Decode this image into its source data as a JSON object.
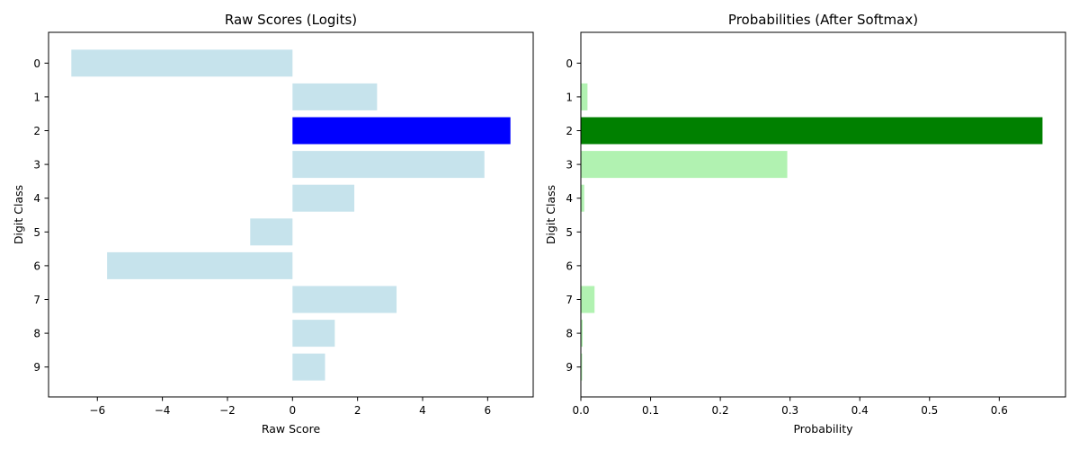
{
  "chart_data": [
    {
      "type": "bar",
      "orientation": "horizontal",
      "title": "Raw Scores (Logits)",
      "xlabel": "Raw Score",
      "ylabel": "Digit Class",
      "categories": [
        "0",
        "1",
        "2",
        "3",
        "4",
        "5",
        "6",
        "7",
        "8",
        "9"
      ],
      "values": [
        -6.8,
        2.6,
        6.7,
        5.9,
        1.9,
        -1.3,
        -5.7,
        3.2,
        1.3,
        1.0
      ],
      "xlim": [
        -7.5,
        7.4
      ],
      "xticks": [
        -6,
        -4,
        -2,
        0,
        2,
        4,
        6
      ],
      "xtick_labels": [
        "−6",
        "−4",
        "−2",
        "0",
        "2",
        "4",
        "6"
      ],
      "color": "#c6e3ec",
      "highlight_index": 2,
      "highlight_color": "#0000ff",
      "grid": false,
      "legend": "none"
    },
    {
      "type": "bar",
      "orientation": "horizontal",
      "title": "Probabilities (After Softmax)",
      "xlabel": "Probability",
      "ylabel": "Digit Class",
      "categories": [
        "0",
        "1",
        "2",
        "3",
        "4",
        "5",
        "6",
        "7",
        "8",
        "9"
      ],
      "values": [
        0.0,
        0.0095,
        0.662,
        0.296,
        0.0048,
        0.0002,
        0.0,
        0.0196,
        0.0026,
        0.0019
      ],
      "xlim": [
        0,
        0.695
      ],
      "xticks": [
        0,
        0.1,
        0.2,
        0.3,
        0.4,
        0.5,
        0.6
      ],
      "xtick_labels": [
        "0.0",
        "0.1",
        "0.2",
        "0.3",
        "0.4",
        "0.5",
        "0.6"
      ],
      "color": "#b1f2b1",
      "highlight_index": 2,
      "highlight_color": "#008000",
      "grid": false,
      "legend": "none"
    }
  ]
}
